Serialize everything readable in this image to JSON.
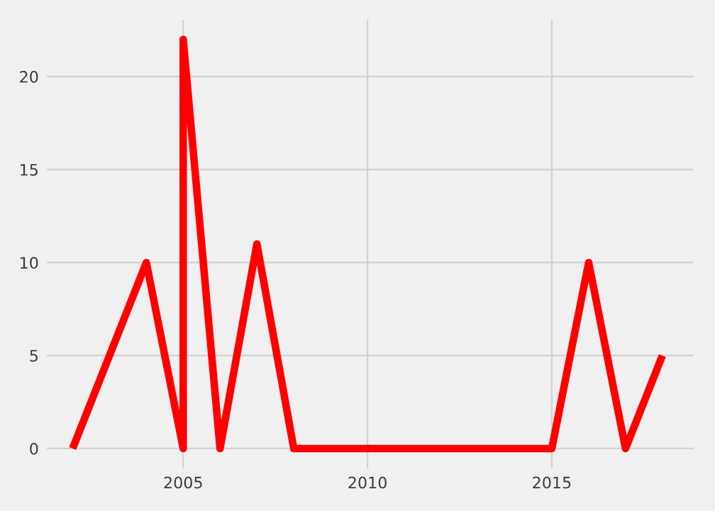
{
  "chart_data": {
    "type": "line",
    "x": [
      2002,
      2004,
      2005,
      2005,
      2006,
      2007,
      2008,
      2009,
      2010,
      2011,
      2012,
      2013,
      2014,
      2015,
      2016,
      2017,
      2018
    ],
    "series": [
      {
        "color": "#ff0000",
        "values": [
          0,
          10,
          0,
          22,
          0,
          11,
          0,
          0,
          0,
          0,
          0,
          0,
          0,
          0,
          10,
          0,
          5
        ]
      }
    ],
    "xlim": [
      2001.3,
      2018.85
    ],
    "ylim": [
      -1.07,
      23.05
    ],
    "xticks": [
      2005,
      2010,
      2015
    ],
    "yticks": [
      0,
      5,
      10,
      15,
      20
    ],
    "grid": true,
    "line_style": "solid",
    "marker": "none"
  }
}
